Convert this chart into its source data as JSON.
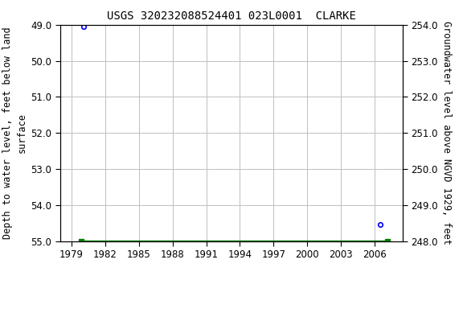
{
  "title": "USGS 320232088524401 023L0001  CLARKE",
  "ylabel_left": "Depth to water level, feet below land\nsurface",
  "ylabel_right": "Groundwater level above NGVD 1929, feet",
  "xlim": [
    1978.0,
    2008.5
  ],
  "ylim_left": [
    49.0,
    55.0
  ],
  "ylim_right": [
    248.0,
    254.0
  ],
  "xticks": [
    1979,
    1982,
    1985,
    1988,
    1991,
    1994,
    1997,
    2000,
    2003,
    2006
  ],
  "yticks_left": [
    49.0,
    50.0,
    51.0,
    52.0,
    53.0,
    54.0,
    55.0
  ],
  "yticks_right": [
    248.0,
    249.0,
    250.0,
    251.0,
    252.0,
    253.0,
    254.0
  ],
  "blue_points_x": [
    1980.1,
    2006.5
  ],
  "blue_points_y": [
    49.05,
    54.55
  ],
  "green_bar_x1": 1979.9,
  "green_bar_x2": 2007.1,
  "green_bar_y": 55.0,
  "legend_color": "#008000",
  "bg_color": "#ffffff",
  "grid_color": "#c0c0c0",
  "point_color": "#0000ff",
  "title_fontsize": 10,
  "axis_label_fontsize": 8.5,
  "tick_fontsize": 8.5
}
